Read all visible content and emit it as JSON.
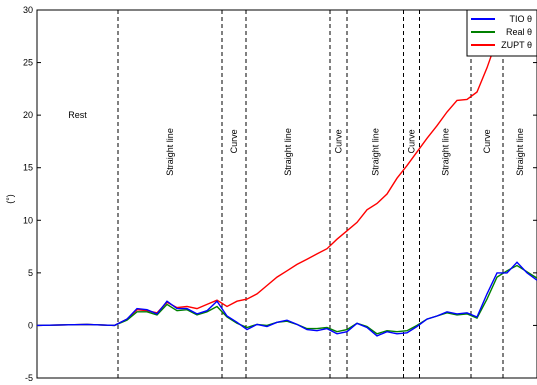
{
  "chart_data": {
    "type": "line",
    "ylabel": "(°)",
    "xlabel": "",
    "title": "",
    "ylim": [
      -5,
      30
    ],
    "xlim": [
      0,
      100
    ],
    "yticks": [
      -5,
      0,
      5,
      10,
      15,
      20,
      25,
      30
    ],
    "legend": {
      "placement": "top-right"
    },
    "series": [
      {
        "name": "TIO θ",
        "color": "#0000ff",
        "x": [
          0,
          10,
          15.5,
          18,
          20,
          22,
          24,
          26,
          28,
          30,
          32,
          34,
          36,
          38,
          40,
          42,
          44,
          46,
          48,
          50,
          52,
          54,
          56,
          58,
          60,
          62,
          64,
          66,
          68,
          70,
          72,
          74,
          76,
          78,
          80,
          82,
          84,
          86,
          88,
          90,
          92,
          94,
          96,
          98,
          100
        ],
        "y": [
          0,
          0.1,
          0.0,
          0.6,
          1.6,
          1.5,
          1.1,
          2.3,
          1.6,
          1.6,
          1.1,
          1.4,
          2.3,
          0.9,
          0.3,
          -0.4,
          0.1,
          -0.1,
          0.3,
          0.5,
          0.1,
          -0.4,
          -0.5,
          -0.3,
          -0.8,
          -0.6,
          0.2,
          -0.2,
          -1.0,
          -0.6,
          -0.8,
          -0.7,
          -0.1,
          0.6,
          0.9,
          1.3,
          1.1,
          1.2,
          0.8,
          3.0,
          5.0,
          5.0,
          6.0,
          5.0,
          4.3
        ]
      },
      {
        "name": "Real θ",
        "color": "#008000",
        "x": [
          0,
          10,
          15.5,
          18,
          20,
          22,
          24,
          26,
          28,
          30,
          32,
          34,
          36,
          38,
          40,
          42,
          44,
          46,
          48,
          50,
          52,
          54,
          56,
          58,
          60,
          62,
          64,
          66,
          68,
          70,
          72,
          74,
          76,
          78,
          80,
          82,
          84,
          86,
          88,
          90,
          92,
          94,
          96,
          98,
          100
        ],
        "y": [
          0,
          0.1,
          0.0,
          0.5,
          1.3,
          1.3,
          1.0,
          2.0,
          1.4,
          1.5,
          1.0,
          1.3,
          1.8,
          0.8,
          0.2,
          -0.2,
          0.1,
          0.0,
          0.3,
          0.4,
          0.1,
          -0.3,
          -0.3,
          -0.2,
          -0.6,
          -0.4,
          0.2,
          -0.1,
          -0.8,
          -0.5,
          -0.6,
          -0.5,
          0.0,
          0.6,
          0.9,
          1.2,
          1.0,
          1.1,
          0.7,
          2.5,
          4.6,
          5.2,
          5.7,
          5.1,
          4.5
        ]
      },
      {
        "name": "ZUPT θ",
        "color": "#ff0000",
        "x": [
          0,
          10,
          15.5,
          18,
          20,
          22,
          24,
          26,
          28,
          30,
          32,
          34,
          36,
          38,
          40,
          42,
          44,
          46,
          48,
          50,
          52,
          54,
          56,
          58,
          60,
          62,
          64,
          66,
          68,
          70,
          72,
          74,
          76,
          78,
          80,
          82,
          84,
          86,
          88,
          90,
          92,
          94
        ],
        "y": [
          0,
          0.1,
          0.0,
          0.6,
          1.5,
          1.4,
          1.2,
          2.2,
          1.7,
          1.8,
          1.6,
          2.0,
          2.4,
          1.8,
          2.3,
          2.5,
          3.0,
          3.8,
          4.6,
          5.2,
          5.8,
          6.3,
          6.8,
          7.3,
          8.2,
          9.0,
          9.8,
          11.0,
          11.6,
          12.5,
          14.0,
          15.2,
          16.5,
          17.8,
          19.0,
          20.3,
          21.4,
          21.5,
          22.2,
          24.5,
          27.2,
          30.0
        ]
      }
    ],
    "segments": [
      {
        "label": "Rest",
        "from": 0,
        "to": 16.2,
        "orientation": "horizontal",
        "label_y": 20
      },
      {
        "label": "Straight line",
        "from": 16.2,
        "to": 37.0,
        "orientation": "vertical",
        "label_y": 16.5
      },
      {
        "label": "Curve",
        "from": 37.0,
        "to": 41.8,
        "orientation": "vertical",
        "label_y": 17.5
      },
      {
        "label": "Straight line",
        "from": 41.8,
        "to": 58.6,
        "orientation": "vertical",
        "label_y": 16.5
      },
      {
        "label": "Curve",
        "from": 58.6,
        "to": 62.0,
        "orientation": "vertical",
        "label_y": 17.5
      },
      {
        "label": "Straight line",
        "from": 62.0,
        "to": 73.3,
        "orientation": "vertical",
        "label_y": 16.5
      },
      {
        "label": "Curve",
        "from": 73.3,
        "to": 76.5,
        "orientation": "vertical",
        "label_y": 17.5
      },
      {
        "label": "Straight line",
        "from": 76.5,
        "to": 86.8,
        "orientation": "vertical",
        "label_y": 16.5
      },
      {
        "label": "Curve",
        "from": 86.8,
        "to": 93.2,
        "orientation": "vertical",
        "label_y": 17.5
      },
      {
        "label": "Straight line",
        "from": 93.2,
        "to": 100,
        "orientation": "vertical",
        "label_y": 16.5
      }
    ],
    "grid": false
  }
}
